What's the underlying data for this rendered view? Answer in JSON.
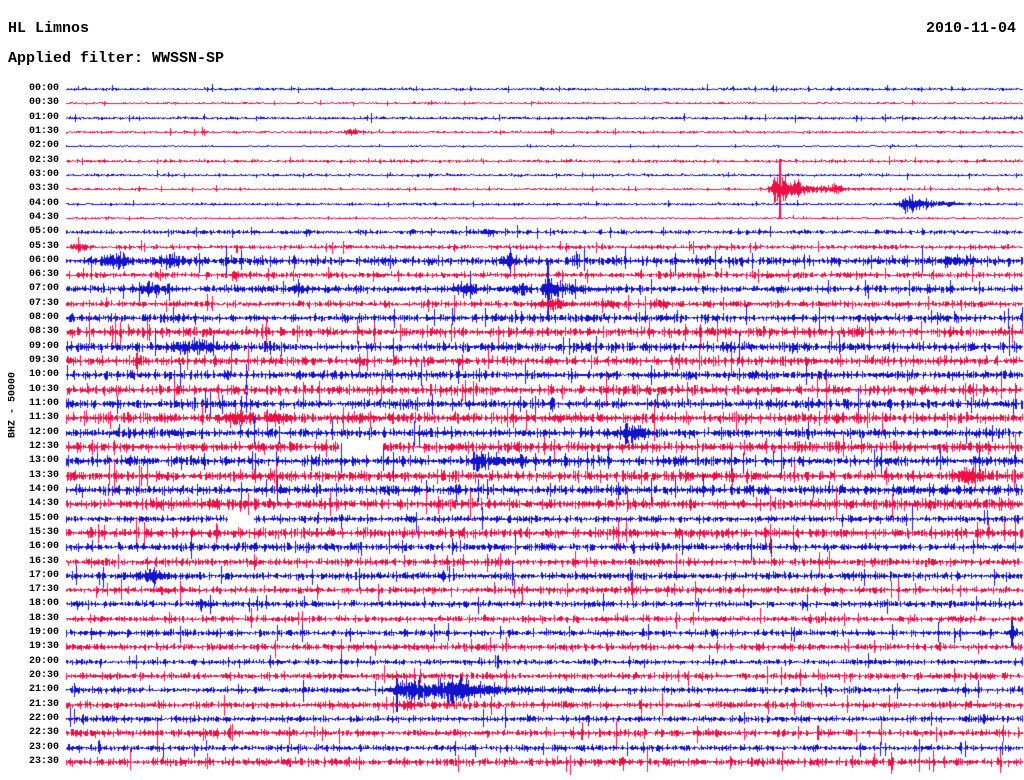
{
  "header": {
    "station": "HL Limnos",
    "date": "2010-11-04",
    "filter_label": "Applied filter: WWSSN-SP"
  },
  "palette": {
    "blue": "#1313cd",
    "red": "#ee1045",
    "text": "#000000",
    "background": "#ffffff"
  },
  "chart_data": {
    "type": "line",
    "subtype": "helicorder-seismogram",
    "title": "HL Limnos",
    "date": "2010-11-04",
    "filter": "WWSSN-SP",
    "ylabel": "BHZ - 50000",
    "row_duration_minutes": 30,
    "legend": "blue = traces starting on the hour, red = traces starting on the half hour; event positions in minutes after row start; amplitudes in px",
    "rows": [
      {
        "time": "00:00",
        "color": "blue",
        "noise": 0.9,
        "events": [],
        "gaps": []
      },
      {
        "time": "00:30",
        "color": "red",
        "noise": 0.6,
        "events": [],
        "gaps": []
      },
      {
        "time": "01:00",
        "color": "blue",
        "noise": 0.9,
        "events": [],
        "gaps": []
      },
      {
        "time": "01:30",
        "color": "red",
        "noise": 0.8,
        "events": [
          {
            "t": "g",
            "m": 8.97,
            "w": 0.25,
            "a": 2.2
          }
        ],
        "gaps": []
      },
      {
        "time": "02:00",
        "color": "blue",
        "noise": 0.45,
        "events": [],
        "gaps": []
      },
      {
        "time": "02:30",
        "color": "red",
        "noise": 1.0,
        "events": [],
        "gaps": []
      },
      {
        "time": "03:00",
        "color": "blue",
        "noise": 0.8,
        "events": [],
        "gaps": []
      },
      {
        "time": "03:30",
        "color": "red",
        "noise": 0.7,
        "events": [
          {
            "t": "sp",
            "m": 22.41,
            "u": 30,
            "d": 30
          },
          {
            "t": "ad",
            "m": 22.34,
            "r": 0.19,
            "f": 0.82,
            "a": 13
          },
          {
            "t": "g",
            "m": 24.16,
            "w": 0.16,
            "a": 3.5
          }
        ],
        "gaps": []
      },
      {
        "time": "04:00",
        "color": "blue",
        "noise": 0.8,
        "events": [
          {
            "t": "ad",
            "m": 26.42,
            "r": 0.25,
            "f": 0.69,
            "a": 8
          }
        ],
        "gaps": []
      },
      {
        "time": "04:30",
        "color": "red",
        "noise": 0.6,
        "events": [],
        "gaps": []
      },
      {
        "time": "05:00",
        "color": "blue",
        "noise": 1.4,
        "events": [
          {
            "t": "g",
            "m": 7.56,
            "w": 0.13,
            "a": 2.5
          },
          {
            "t": "g",
            "m": 13.21,
            "w": 0.19,
            "a": 3
          }
        ],
        "gaps": []
      },
      {
        "time": "05:30",
        "color": "red",
        "noise": 1.5,
        "events": [
          {
            "t": "g",
            "m": 0.44,
            "w": 0.25,
            "a": 2.5
          },
          {
            "t": "sp",
            "m": 5.37,
            "u": 2,
            "d": 6
          }
        ],
        "gaps": []
      },
      {
        "time": "06:00",
        "color": "blue",
        "noise": 2.9,
        "events": [
          {
            "t": "g",
            "m": 1.54,
            "w": 0.44,
            "a": 4
          },
          {
            "t": "sp",
            "m": 3.26,
            "u": 7,
            "d": 7
          },
          {
            "t": "g",
            "m": 3.33,
            "w": 0.31,
            "a": 4
          },
          {
            "t": "g",
            "m": 13.93,
            "w": 0.25,
            "a": 4
          },
          {
            "t": "g",
            "m": 28.05,
            "w": 0.47,
            "a": 3.5
          }
        ],
        "gaps": []
      },
      {
        "time": "06:30",
        "color": "red",
        "noise": 2.1,
        "events": [
          {
            "t": "g",
            "m": 5.3,
            "w": 0.16,
            "a": 3
          }
        ],
        "gaps": []
      },
      {
        "time": "07:00",
        "color": "blue",
        "noise": 2.4,
        "events": [
          {
            "t": "g",
            "m": 2.64,
            "w": 0.47,
            "a": 4
          },
          {
            "t": "g",
            "m": 7.34,
            "w": 0.31,
            "a": 3
          },
          {
            "t": "g",
            "m": 12.52,
            "w": 0.38,
            "a": 4.5
          },
          {
            "t": "g",
            "m": 14.25,
            "w": 0.25,
            "a": 3.5
          },
          {
            "t": "sp",
            "m": 15.13,
            "u": 26,
            "d": 26
          },
          {
            "t": "ad",
            "m": 15.13,
            "r": 0.16,
            "f": 0.56,
            "a": 8
          }
        ],
        "gaps": []
      },
      {
        "time": "07:30",
        "color": "red",
        "noise": 2.1,
        "events": [
          {
            "t": "g",
            "m": 15.28,
            "w": 0.44,
            "a": 4
          },
          {
            "t": "g",
            "m": 17.07,
            "w": 0.25,
            "a": 3
          },
          {
            "t": "g",
            "m": 18.64,
            "w": 0.25,
            "a": 3
          }
        ],
        "gaps": []
      },
      {
        "time": "08:00",
        "color": "blue",
        "noise": 2.5,
        "events": [],
        "gaps": []
      },
      {
        "time": "08:30",
        "color": "red",
        "noise": 3.1,
        "events": [],
        "gaps": []
      },
      {
        "time": "09:00",
        "color": "blue",
        "noise": 3.0,
        "events": [
          {
            "t": "g",
            "m": 4.05,
            "w": 0.63,
            "a": 4
          }
        ],
        "gaps": []
      },
      {
        "time": "09:30",
        "color": "red",
        "noise": 2.9,
        "events": [],
        "gaps": []
      },
      {
        "time": "10:00",
        "color": "blue",
        "noise": 2.9,
        "events": [],
        "gaps": []
      },
      {
        "time": "10:30",
        "color": "red",
        "noise": 3.1,
        "events": [],
        "gaps": []
      },
      {
        "time": "11:00",
        "color": "blue",
        "noise": 3.1,
        "events": [],
        "gaps": []
      },
      {
        "time": "11:30",
        "color": "red",
        "noise": 3.3,
        "events": [
          {
            "t": "g",
            "m": 5.37,
            "w": 0.38,
            "a": 5
          },
          {
            "t": "g",
            "m": 6.62,
            "w": 0.28,
            "a": 4
          },
          {
            "t": "g",
            "m": 9.23,
            "w": 0.31,
            "a": 3
          }
        ],
        "gaps": []
      },
      {
        "time": "12:00",
        "color": "blue",
        "noise": 3.1,
        "events": [
          {
            "t": "g",
            "m": 17.76,
            "w": 0.38,
            "a": 7
          }
        ],
        "gaps": []
      },
      {
        "time": "12:30",
        "color": "red",
        "noise": 3.3,
        "events": [],
        "gaps": [
          [
            8.54,
            9.92
          ]
        ]
      },
      {
        "time": "13:00",
        "color": "blue",
        "noise": 3.1,
        "events": [
          {
            "t": "sp",
            "m": 12.8,
            "u": 9,
            "d": 9
          },
          {
            "t": "ad",
            "m": 12.93,
            "r": 0.19,
            "f": 0.94,
            "a": 7
          }
        ],
        "gaps": []
      },
      {
        "time": "13:30",
        "color": "red",
        "noise": 3.4,
        "events": [
          {
            "t": "g",
            "m": 28.31,
            "w": 0.38,
            "a": 6
          }
        ],
        "gaps": []
      },
      {
        "time": "14:00",
        "color": "blue",
        "noise": 3.1,
        "events": [],
        "gaps": []
      },
      {
        "time": "14:30",
        "color": "red",
        "noise": 3.4,
        "events": [],
        "gaps": []
      },
      {
        "time": "15:00",
        "color": "blue",
        "noise": 2.2,
        "events": [],
        "gaps": [
          [
            5.08,
            5.87
          ]
        ]
      },
      {
        "time": "15:30",
        "color": "red",
        "noise": 3.1,
        "events": [],
        "gaps": []
      },
      {
        "time": "16:00",
        "color": "blue",
        "noise": 2.5,
        "events": [],
        "gaps": []
      },
      {
        "time": "16:30",
        "color": "red",
        "noise": 2.5,
        "events": [],
        "gaps": []
      },
      {
        "time": "17:00",
        "color": "blue",
        "noise": 2.4,
        "events": [
          {
            "t": "g",
            "m": 2.7,
            "w": 0.5,
            "a": 4.5
          }
        ],
        "gaps": []
      },
      {
        "time": "17:30",
        "color": "red",
        "noise": 2.2,
        "events": [
          {
            "t": "g",
            "m": 3.11,
            "w": 0.19,
            "a": 2.5
          }
        ],
        "gaps": []
      },
      {
        "time": "18:00",
        "color": "blue",
        "noise": 2.2,
        "events": [
          {
            "t": "g",
            "m": 4.36,
            "w": 0.31,
            "a": 2.5
          }
        ],
        "gaps": []
      },
      {
        "time": "18:30",
        "color": "red",
        "noise": 2.2,
        "events": [],
        "gaps": []
      },
      {
        "time": "19:00",
        "color": "blue",
        "noise": 2.2,
        "events": [
          {
            "t": "sp",
            "m": 29.69,
            "u": 13,
            "d": 13
          },
          {
            "t": "g",
            "m": 29.69,
            "w": 0.13,
            "a": 4
          }
        ],
        "gaps": []
      },
      {
        "time": "19:30",
        "color": "red",
        "noise": 2.2,
        "events": [],
        "gaps": []
      },
      {
        "time": "20:00",
        "color": "blue",
        "noise": 1.8,
        "events": [],
        "gaps": []
      },
      {
        "time": "20:30",
        "color": "red",
        "noise": 2.2,
        "events": [],
        "gaps": []
      },
      {
        "time": "21:00",
        "color": "blue",
        "noise": 2.1,
        "events": [
          {
            "t": "sp",
            "m": 10.39,
            "u": 12,
            "d": 22
          },
          {
            "t": "g",
            "m": 10.86,
            "w": 0.44,
            "a": 10
          },
          {
            "t": "sp",
            "m": 12.11,
            "u": 8,
            "d": 16
          },
          {
            "t": "g",
            "m": 11.99,
            "w": 0.56,
            "a": 9
          },
          {
            "t": "ad",
            "m": 12.52,
            "r": 0.31,
            "f": 1.26,
            "a": 5
          }
        ],
        "gaps": []
      },
      {
        "time": "21:30",
        "color": "red",
        "noise": 2.4,
        "events": [
          {
            "t": "g",
            "m": 10.73,
            "w": 0.19,
            "a": 3
          }
        ],
        "gaps": []
      },
      {
        "time": "22:00",
        "color": "blue",
        "noise": 2.2,
        "events": [],
        "gaps": []
      },
      {
        "time": "22:30",
        "color": "red",
        "noise": 2.3,
        "events": [],
        "gaps": []
      },
      {
        "time": "23:00",
        "color": "blue",
        "noise": 2.0,
        "events": [],
        "gaps": []
      },
      {
        "time": "23:30",
        "color": "red",
        "noise": 2.6,
        "events": [],
        "gaps": []
      }
    ]
  }
}
